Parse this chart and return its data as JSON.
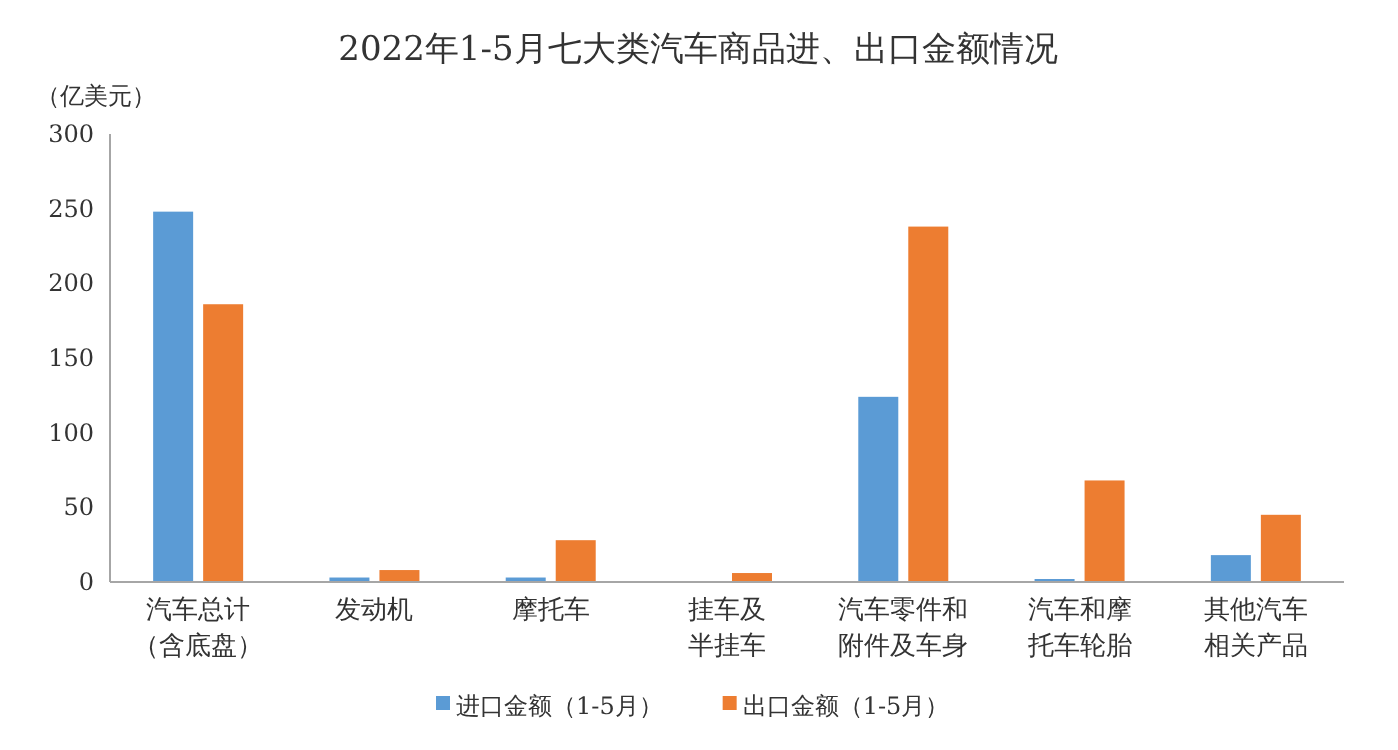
{
  "chart_data": {
    "type": "bar",
    "title": "2022年1-5月七大类汽车商品进、出口金额情况",
    "ylabel": "（亿美元）",
    "categories": [
      "汽车总计（含底盘）",
      "发动机",
      "摩托车",
      "挂车及半挂车",
      "汽车零件和附件及车身",
      "汽车和摩托车轮胎",
      "其他汽车相关产品"
    ],
    "series": [
      {
        "name": "进口金额（1-5月）",
        "color": "#5b9bd5",
        "values": [
          248,
          3,
          3,
          0,
          124,
          2,
          18
        ]
      },
      {
        "name": "出口金额（1-5月）",
        "color": "#ed7d31",
        "values": [
          186,
          8,
          28,
          6,
          238,
          68,
          45
        ]
      }
    ],
    "ylim": [
      0,
      300
    ],
    "yticks": [
      0,
      50,
      100,
      150,
      200,
      250,
      300
    ],
    "grid": false,
    "legend": "bottom"
  }
}
